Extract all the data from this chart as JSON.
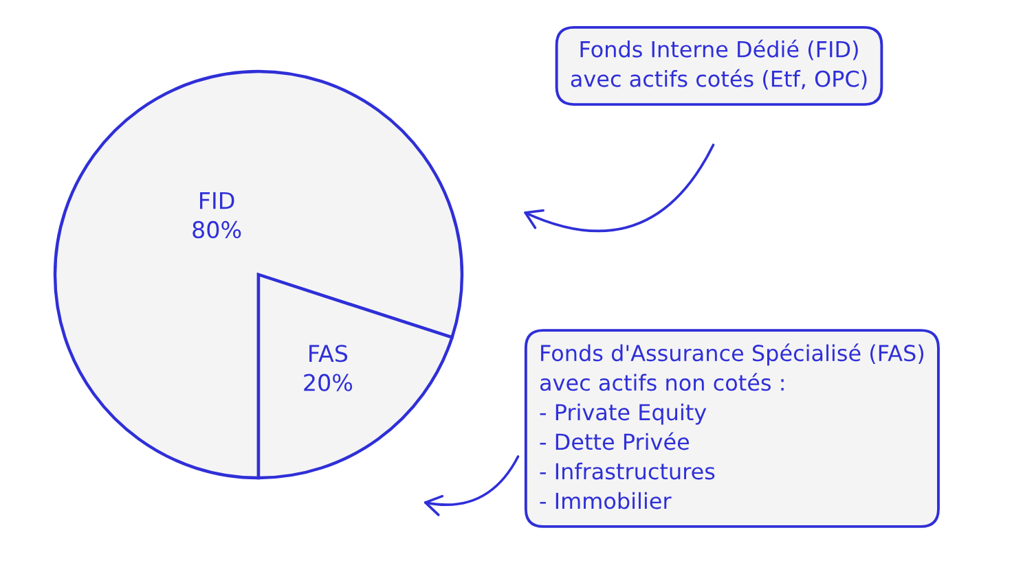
{
  "chart_data": {
    "type": "pie",
    "categories": [
      "FID",
      "FAS"
    ],
    "values": [
      80,
      20
    ],
    "colors": [
      "#f4f4f4",
      "#f4f4f4"
    ],
    "value_labels": [
      "80%",
      "20%"
    ],
    "legend": false,
    "annotations": [
      "Fonds Interne Dédié (FID)\navec actifs cotés (Etf, OPC)",
      "Fonds d'Assurance Spécialisé (FAS)\navec actifs non cotés :\n- Private Equity\n- Dette Privée\n- Infrastructures\n- Immobilier"
    ]
  }
}
